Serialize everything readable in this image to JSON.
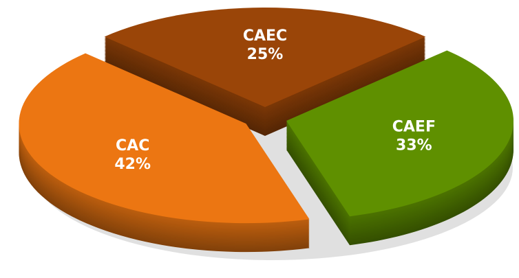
{
  "chart_data": {
    "type": "pie",
    "categories": [
      "CAEC",
      "CAEF",
      "CAC"
    ],
    "values": [
      25,
      33,
      42
    ],
    "value_labels": [
      "25%",
      "33%",
      "42%"
    ],
    "colors": [
      "#9a4508",
      "#5f9000",
      "#ec7612"
    ]
  }
}
